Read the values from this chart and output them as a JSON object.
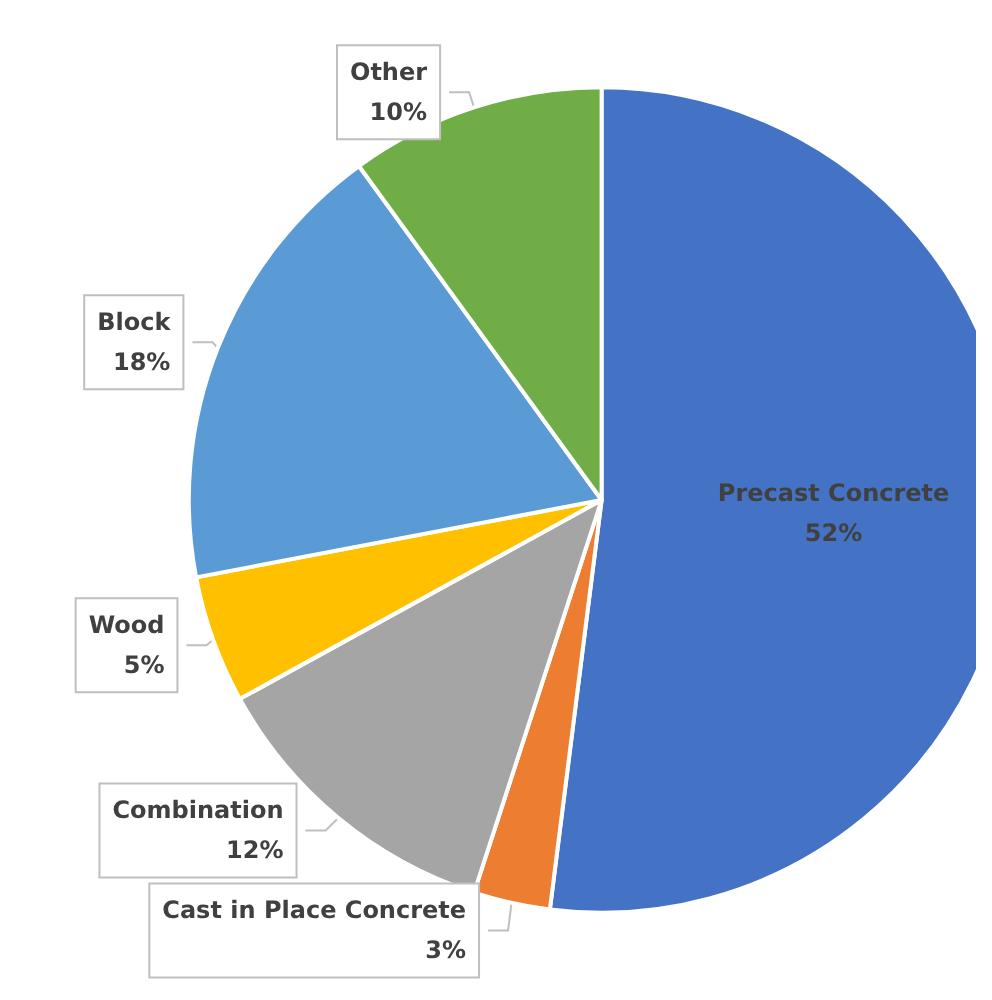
{
  "chart_data": {
    "type": "pie",
    "categories": [
      "Precast Concrete",
      "Cast in Place Concrete",
      "Combination",
      "Wood",
      "Block",
      "Other"
    ],
    "values": [
      52,
      3,
      12,
      5,
      18,
      10
    ],
    "colors": [
      "#4472c4",
      "#ed7d31",
      "#a5a5a5",
      "#ffc000",
      "#5b9bd5",
      "#70ad47"
    ],
    "value_labels": [
      "52%",
      "3%",
      "12%",
      "5%",
      "18%",
      "10%"
    ],
    "legend": false
  }
}
